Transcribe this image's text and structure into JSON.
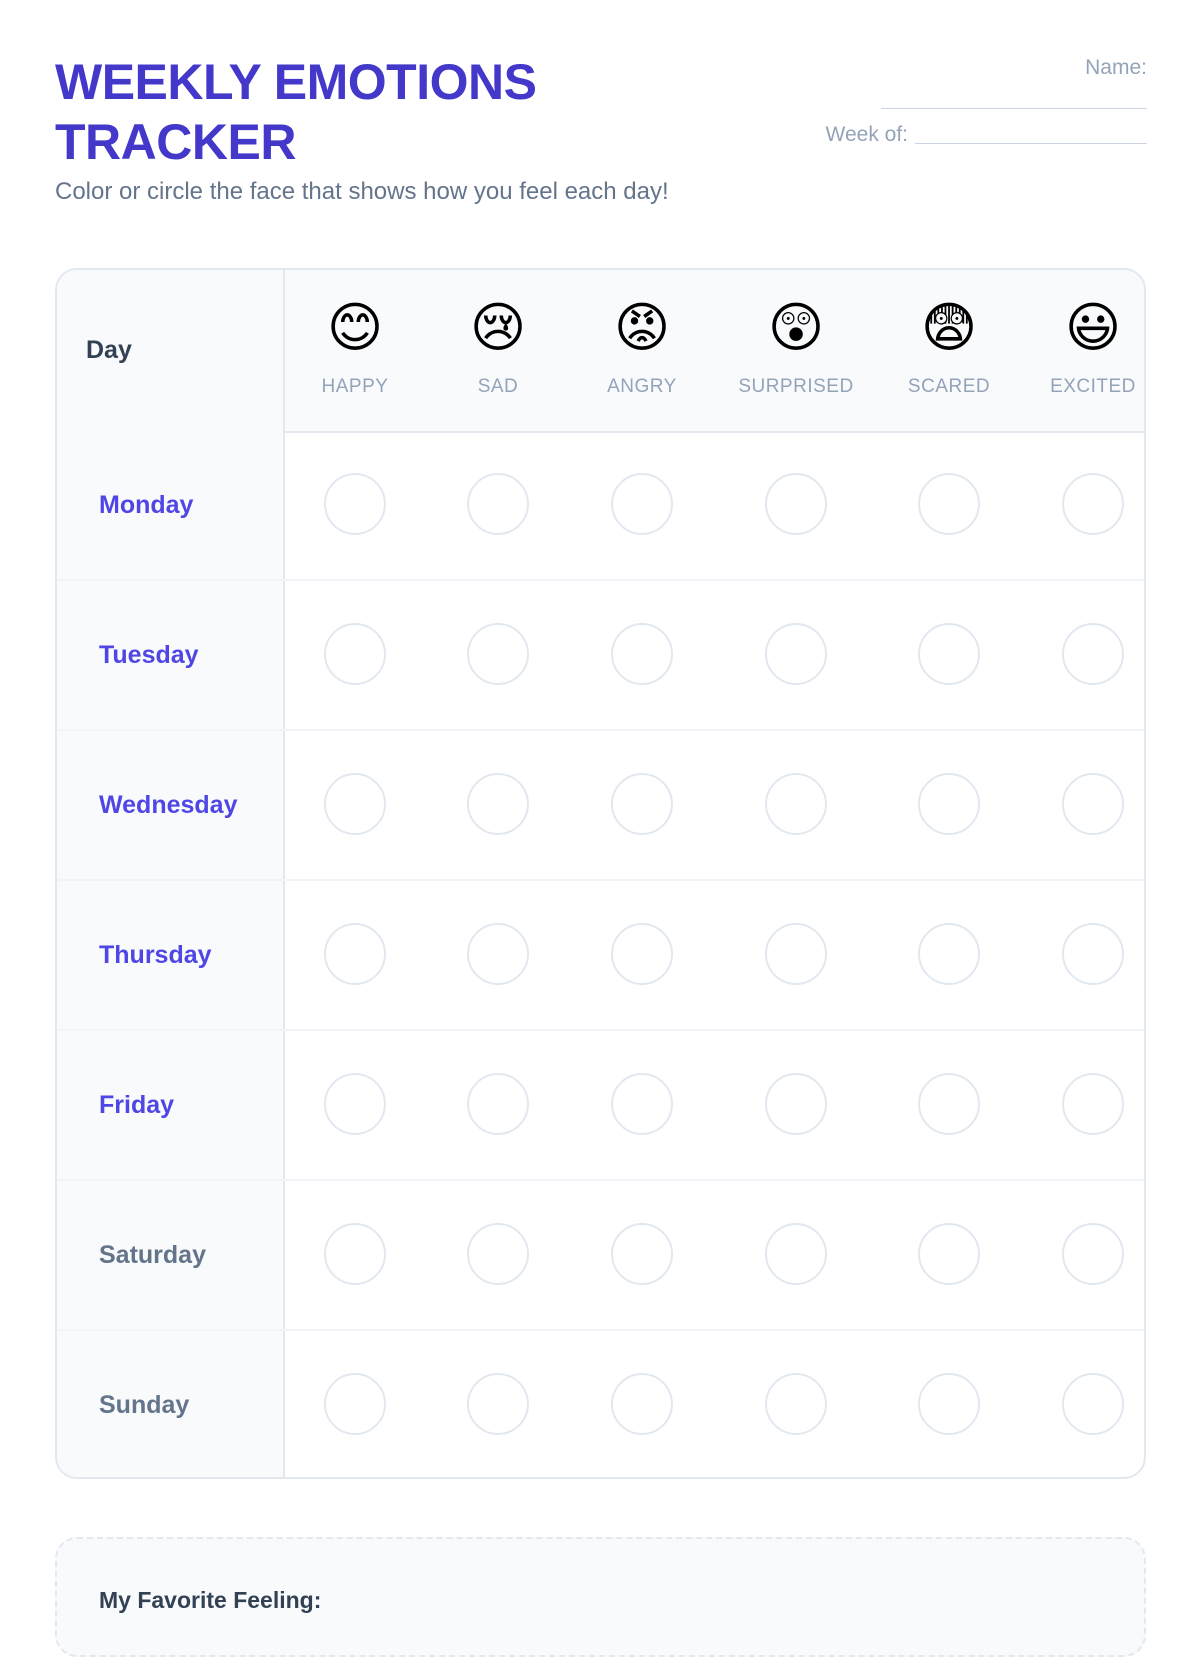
{
  "header": {
    "title_line1": "WEEKLY EMOTIONS",
    "title_line2": "TRACKER",
    "subtitle": "Color or circle the face that shows how you feel each day!",
    "name_label": "Name:",
    "week_label": "Week of:"
  },
  "table": {
    "day_header": "Day",
    "emotions": [
      {
        "emoji": "😊",
        "label": "HAPPY"
      },
      {
        "emoji": "😢",
        "label": "SAD"
      },
      {
        "emoji": "😡",
        "label": "ANGRY"
      },
      {
        "emoji": "😲",
        "label": "SURPRISED"
      },
      {
        "emoji": "😨",
        "label": "SCARED"
      },
      {
        "emoji": "😃",
        "label": "EXCITED"
      }
    ],
    "days": [
      "Monday",
      "Tuesday",
      "Wednesday",
      "Thursday",
      "Friday",
      "Saturday",
      "Sunday"
    ]
  },
  "favorite": {
    "label": "My Favorite Feeling:"
  }
}
